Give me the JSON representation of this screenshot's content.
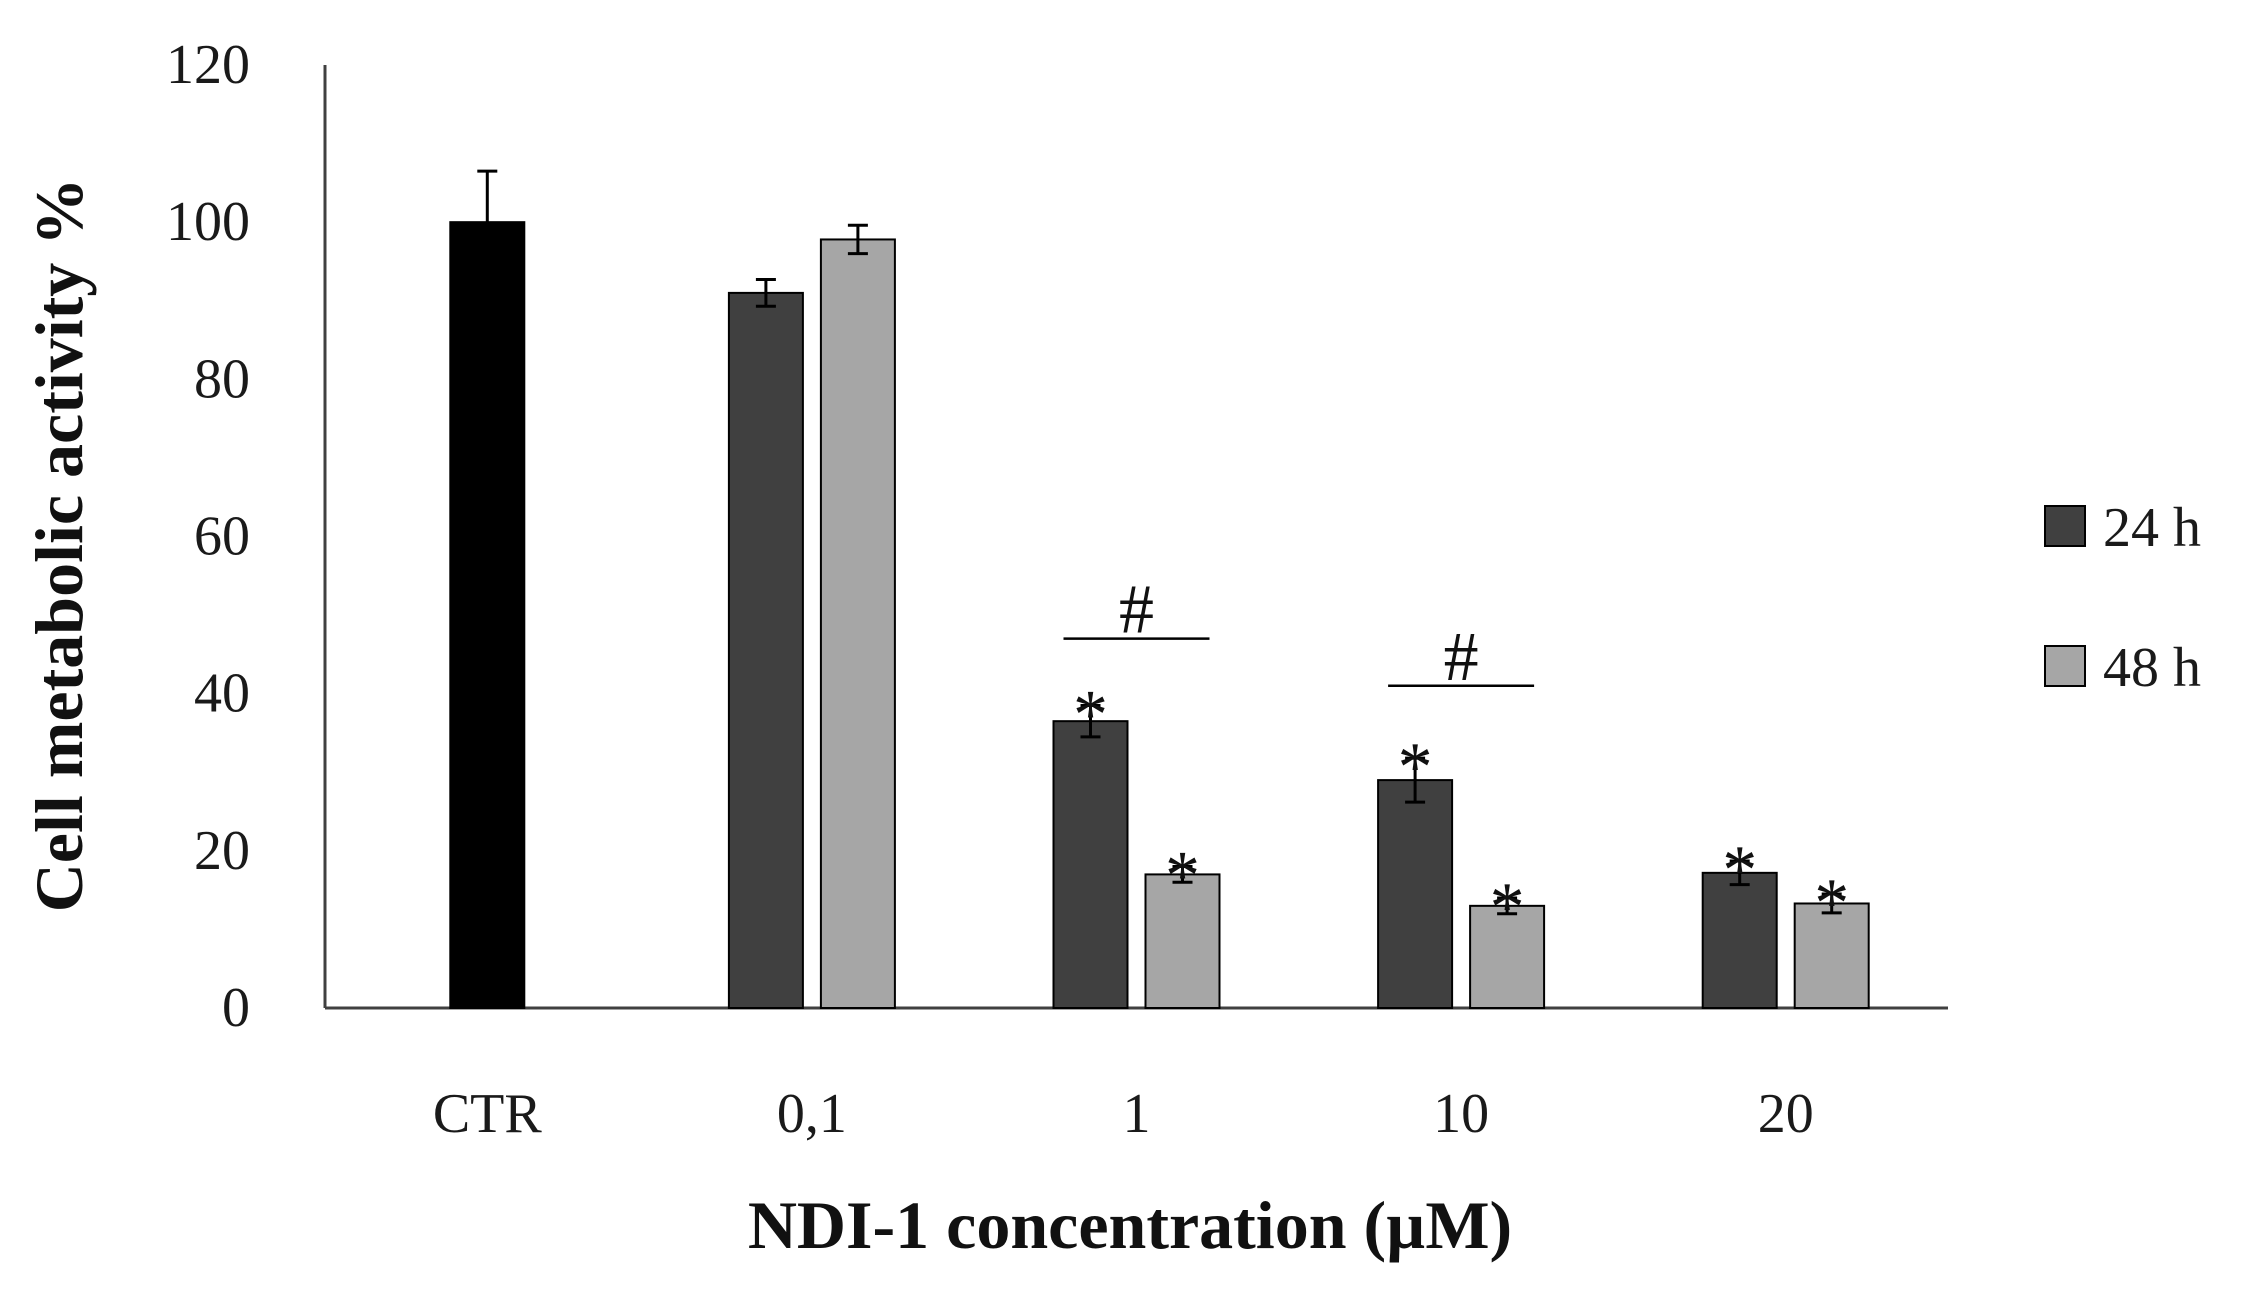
{
  "chart_data": {
    "type": "bar",
    "title": "",
    "xlabel": "NDI-1 concentration (µM)",
    "ylabel": "Cell metabolic activity %",
    "ylim": [
      0,
      120
    ],
    "yticks": [
      0,
      20,
      40,
      60,
      80,
      100,
      120
    ],
    "grid": false,
    "categories": [
      "CTR",
      "0,1",
      "1",
      "10",
      "20"
    ],
    "control": {
      "category": "CTR",
      "value": 100,
      "error": 6.5,
      "color": "#000000"
    },
    "series": [
      {
        "name": "24 h",
        "color": "#404040",
        "values": [
          null,
          91,
          36.5,
          29,
          17.2
        ],
        "errors": [
          null,
          1.7,
          2.0,
          2.8,
          1.5
        ]
      },
      {
        "name": "48 h",
        "color": "#a6a6a6",
        "values": [
          null,
          97.8,
          17,
          13,
          13.3
        ],
        "errors": [
          null,
          1.8,
          1.0,
          1.0,
          1.2
        ]
      }
    ],
    "legend_position": "right",
    "significance": [
      {
        "category": "1",
        "series": "24 h",
        "label": "*"
      },
      {
        "category": "1",
        "series": "48 h",
        "label": "*"
      },
      {
        "category": "10",
        "series": "24 h",
        "label": "*"
      },
      {
        "category": "10",
        "series": "48 h",
        "label": "*"
      },
      {
        "category": "20",
        "series": "24 h",
        "label": "*"
      },
      {
        "category": "20",
        "series": "48 h",
        "label": "*"
      }
    ],
    "brackets": [
      {
        "category": "1",
        "label": "#",
        "y": 47
      },
      {
        "category": "10",
        "label": "#",
        "y": 41
      }
    ]
  }
}
